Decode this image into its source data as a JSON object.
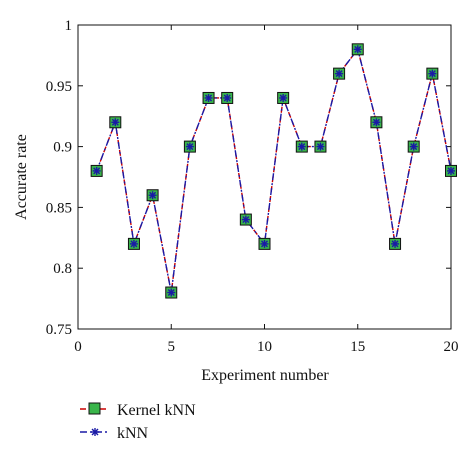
{
  "chart_data": {
    "type": "line",
    "xlabel": "Experiment number",
    "ylabel": "Accurate rate",
    "xlim": [
      0,
      20
    ],
    "ylim": [
      0.75,
      1.0
    ],
    "x_ticks": [
      "0",
      "5",
      "10",
      "15",
      "20"
    ],
    "y_ticks": [
      "0.75",
      "0.8",
      "0.85",
      "0.9",
      "0.95",
      "1"
    ],
    "grid": false,
    "legend_position": "bottom-left",
    "x": [
      1,
      2,
      3,
      4,
      5,
      6,
      7,
      8,
      9,
      10,
      11,
      12,
      13,
      14,
      15,
      16,
      17,
      18,
      19,
      20
    ],
    "series": [
      {
        "name": "Kernel kNN",
        "color": "#cc0000",
        "marker": "square-green",
        "values": [
          0.88,
          0.92,
          0.82,
          0.86,
          0.78,
          0.9,
          0.94,
          0.94,
          0.84,
          0.82,
          0.94,
          0.9,
          0.9,
          0.96,
          0.98,
          0.92,
          0.82,
          0.9,
          0.96,
          0.88
        ]
      },
      {
        "name": "kNN",
        "color": "#1a1aa6",
        "marker": "star-blue",
        "values": [
          0.88,
          0.92,
          0.82,
          0.86,
          0.78,
          0.9,
          0.94,
          0.94,
          0.84,
          0.82,
          0.94,
          0.9,
          0.9,
          0.96,
          0.98,
          0.92,
          0.82,
          0.9,
          0.96,
          0.88
        ]
      }
    ]
  }
}
